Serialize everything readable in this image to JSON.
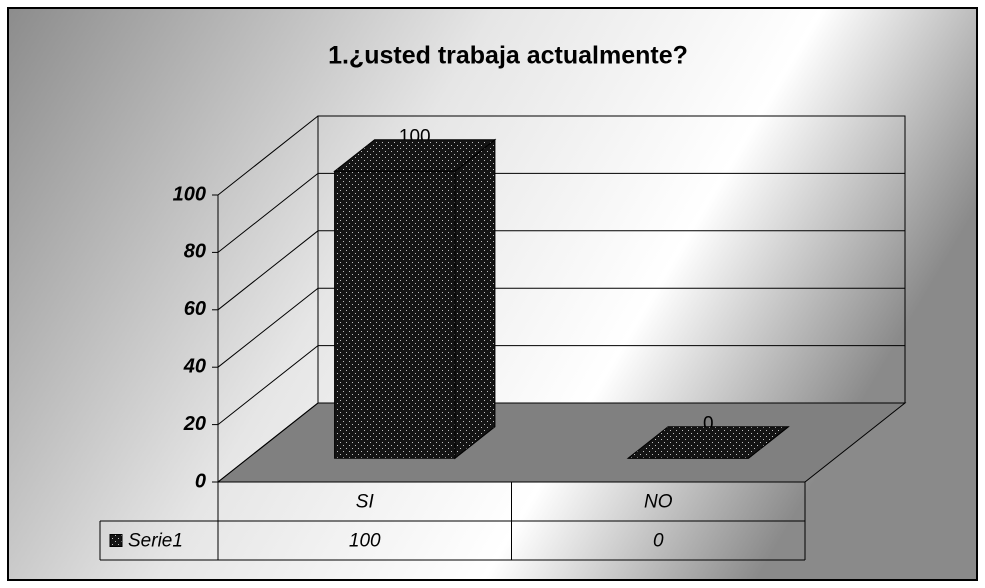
{
  "chart_data": {
    "type": "bar3d",
    "title": "1.¿usted trabaja actualmente?",
    "categories": [
      "SI",
      "NO"
    ],
    "series": [
      {
        "name": "Serie1",
        "color": "#1a1a1a",
        "values": [
          100,
          0
        ]
      }
    ],
    "ylim": [
      0,
      100
    ],
    "yticks": [
      0,
      20,
      40,
      60,
      80,
      100
    ],
    "grid": true,
    "data_table": true
  }
}
